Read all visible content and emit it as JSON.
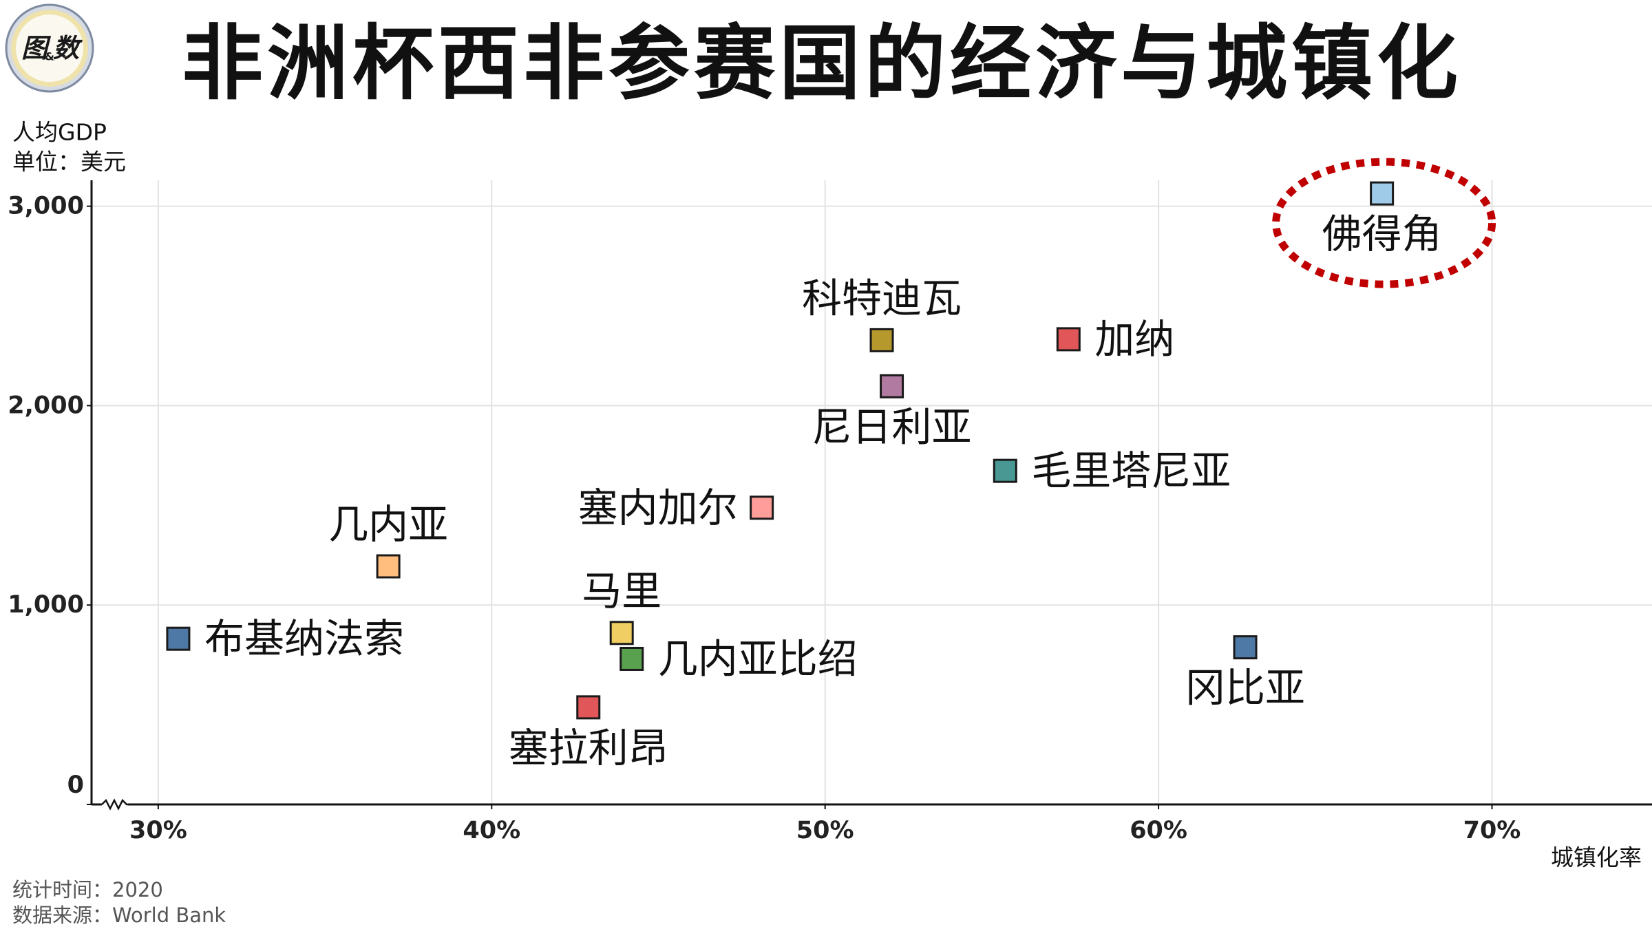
{
  "logo": {
    "char1": "图",
    "amp": "&",
    "char2": "数"
  },
  "footer": {
    "period": "统计时间：2020",
    "source": "数据来源：World Bank"
  },
  "colors": {
    "highlight": "#c00000",
    "grid": "#e2e2e2",
    "axis": "#111111",
    "point_outline": "#1a1a1a"
  },
  "chart_data": {
    "type": "scatter",
    "title": "非洲杯西非参赛国的经济与城镇化",
    "xlabel": "城镇化率",
    "ylabel": "人均GDP",
    "yunit": "单位：美元",
    "xlim": [
      28,
      74.8
    ],
    "ylim": [
      0,
      3130
    ],
    "x_ticks": [
      30,
      40,
      50,
      60,
      70
    ],
    "x_tick_labels": [
      "30%",
      "40%",
      "50%",
      "60%",
      "70%"
    ],
    "y_ticks": [
      0,
      1000,
      2000,
      3000
    ],
    "y_tick_labels": [
      "0",
      "1,000",
      "2,000",
      "3,000"
    ],
    "grid": true,
    "x_axis_break": true,
    "points": [
      {
        "name": "布基纳法索",
        "x": 30.6,
        "y": 831,
        "color": "#4e79a7"
      },
      {
        "name": "几内亚",
        "x": 36.9,
        "y": 1194,
        "color": "#ffbe7d"
      },
      {
        "name": "马里",
        "x": 43.9,
        "y": 860,
        "color": "#f1ce63"
      },
      {
        "name": "几内亚比绍",
        "x": 44.2,
        "y": 730,
        "color": "#59a14f"
      },
      {
        "name": "塞拉利昂",
        "x": 42.9,
        "y": 487,
        "color": "#e15759"
      },
      {
        "name": "塞内加尔",
        "x": 48.1,
        "y": 1488,
        "color": "#ff9d9a"
      },
      {
        "name": "科特迪瓦",
        "x": 51.7,
        "y": 2328,
        "color": "#b6992d"
      },
      {
        "name": "尼日利亚",
        "x": 52.0,
        "y": 2097,
        "color": "#b07aa1"
      },
      {
        "name": "加纳",
        "x": 57.3,
        "y": 2333,
        "color": "#e15759"
      },
      {
        "name": "毛里塔尼亚",
        "x": 55.4,
        "y": 1673,
        "color": "#499894"
      },
      {
        "name": "冈比亚",
        "x": 62.6,
        "y": 788,
        "color": "#4e79a7"
      },
      {
        "name": "佛得角",
        "x": 66.7,
        "y": 3064,
        "color": "#a0cbe8",
        "highlight": true
      }
    ]
  }
}
